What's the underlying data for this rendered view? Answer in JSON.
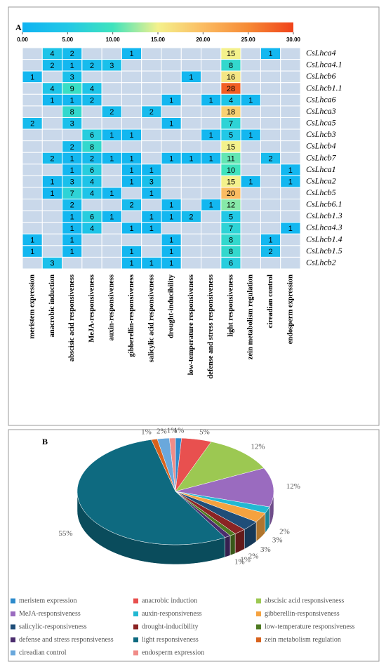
{
  "chart_data": [
    {
      "type": "heatmap",
      "panel": "A",
      "x": [
        "meristem expression",
        "anacrobic induction",
        "abscisic acid responsiveness",
        "MeJA-responsiveness",
        "auxin-responsiveness",
        "gibberellin-responsiveness",
        "salicylic acid responsiveness",
        "drought-inducibility",
        "low-temperature  responsiveness",
        "defense and stress responsiveness",
        "light responsiveness",
        "zein metabolism regulation",
        "cireadian control",
        "endosperm expression"
      ],
      "y": [
        "CsLhca4",
        "CsLhca4.1",
        "CsLhcb6",
        "CsLhcb1.1",
        "CsLhca6",
        "CsLhca3",
        "CsLhca5",
        "CsLhcb3",
        "CsLhcb4",
        "CsLhcb7",
        "CsLhca1",
        "CsLhca2",
        "CsLhcb5",
        "CsLhcb6.1",
        "CsLhcb1.3",
        "CsLhca4.3",
        "CsLhcb1.4",
        "CsLhcb1.5",
        "CsLhcb2"
      ],
      "values": [
        [
          null,
          4,
          2,
          null,
          null,
          1,
          null,
          null,
          null,
          null,
          15,
          null,
          1,
          null
        ],
        [
          null,
          2,
          1,
          2,
          3,
          null,
          null,
          null,
          null,
          null,
          8,
          null,
          null,
          null
        ],
        [
          1,
          null,
          3,
          null,
          null,
          null,
          null,
          null,
          1,
          null,
          16,
          null,
          null,
          null
        ],
        [
          null,
          4,
          9,
          4,
          null,
          null,
          null,
          null,
          null,
          null,
          28,
          null,
          null,
          null
        ],
        [
          null,
          1,
          1,
          2,
          null,
          null,
          null,
          1,
          null,
          1,
          4,
          1,
          null,
          null
        ],
        [
          null,
          null,
          8,
          null,
          2,
          null,
          2,
          null,
          null,
          null,
          18,
          null,
          null,
          null
        ],
        [
          2,
          null,
          3,
          null,
          null,
          null,
          null,
          1,
          null,
          null,
          7,
          null,
          null,
          null
        ],
        [
          null,
          null,
          null,
          6,
          1,
          1,
          null,
          null,
          null,
          1,
          5,
          1,
          null,
          null
        ],
        [
          null,
          null,
          2,
          8,
          null,
          null,
          null,
          null,
          null,
          null,
          15,
          null,
          null,
          null
        ],
        [
          null,
          2,
          1,
          2,
          1,
          1,
          null,
          1,
          1,
          1,
          11,
          null,
          2,
          null
        ],
        [
          null,
          null,
          1,
          6,
          null,
          1,
          1,
          null,
          null,
          null,
          10,
          null,
          null,
          1
        ],
        [
          null,
          1,
          3,
          4,
          null,
          1,
          3,
          null,
          null,
          null,
          15,
          1,
          null,
          1
        ],
        [
          null,
          1,
          7,
          4,
          1,
          null,
          1,
          null,
          null,
          null,
          20,
          null,
          null,
          null
        ],
        [
          null,
          null,
          2,
          null,
          null,
          2,
          null,
          1,
          null,
          1,
          12,
          null,
          null,
          null
        ],
        [
          null,
          null,
          1,
          6,
          1,
          null,
          1,
          1,
          2,
          null,
          5,
          null,
          null,
          null
        ],
        [
          null,
          null,
          1,
          4,
          null,
          1,
          1,
          null,
          null,
          null,
          7,
          null,
          null,
          1
        ],
        [
          1,
          null,
          1,
          null,
          null,
          null,
          null,
          1,
          null,
          null,
          8,
          null,
          1,
          null
        ],
        [
          1,
          null,
          1,
          null,
          null,
          1,
          null,
          1,
          null,
          null,
          8,
          null,
          2,
          null
        ],
        [
          null,
          3,
          null,
          null,
          null,
          1,
          1,
          1,
          null,
          null,
          6,
          null,
          null,
          null
        ]
      ],
      "clim": [
        0,
        30
      ],
      "cticks": [
        {
          "value": 0,
          "label": "0.00"
        },
        {
          "value": 5,
          "label": "5.00"
        },
        {
          "value": 10,
          "label": "10.00"
        },
        {
          "value": 15,
          "label": "15.00"
        },
        {
          "value": 20,
          "label": "20.00"
        },
        {
          "value": 25,
          "label": "25.00"
        },
        {
          "value": 30,
          "label": "30.00"
        }
      ],
      "colorscale": [
        "#0fb3f2",
        "#22c8e6",
        "#3fe3bd",
        "#f4f18c",
        "#fbbc62",
        "#f68a35",
        "#f0421a"
      ],
      "empty_color": "#c9d8ea"
    },
    {
      "type": "pie3d",
      "panel": "B",
      "categories": [
        "meristem expression",
        "anacrobic  induction",
        "abscisic acid responsiveness",
        "MeJA-responsiveness",
        "auxin-responsiveness",
        "gibberellin-responsiveness",
        "salicylic-responsiveness",
        "drought-inducibility",
        "low-temperature responsiveness",
        "defense and stress responsiveness",
        "light responsiveness",
        "zein metabolism regulation",
        "cireadian control",
        "endosperm expression"
      ],
      "values": [
        1,
        5,
        12,
        12,
        2,
        3,
        3,
        2,
        1,
        1,
        55,
        1,
        2,
        1
      ],
      "value_labels": [
        "1%",
        "5%",
        "12%",
        "12%",
        "2%",
        "3%",
        "3%",
        "2%",
        "1%",
        "1%",
        "55%",
        "1%",
        "2%",
        "1%"
      ],
      "colors": [
        "#2e8bcc",
        "#e8504f",
        "#9cc852",
        "#9a6bbf",
        "#22b8d2",
        "#f5a23f",
        "#1f4e79",
        "#8b2424",
        "#4e7a22",
        "#4b2d6e",
        "#0e6a80",
        "#d8621c",
        "#6aa8dc",
        "#f08c88"
      ],
      "legend": "bottom"
    }
  ]
}
